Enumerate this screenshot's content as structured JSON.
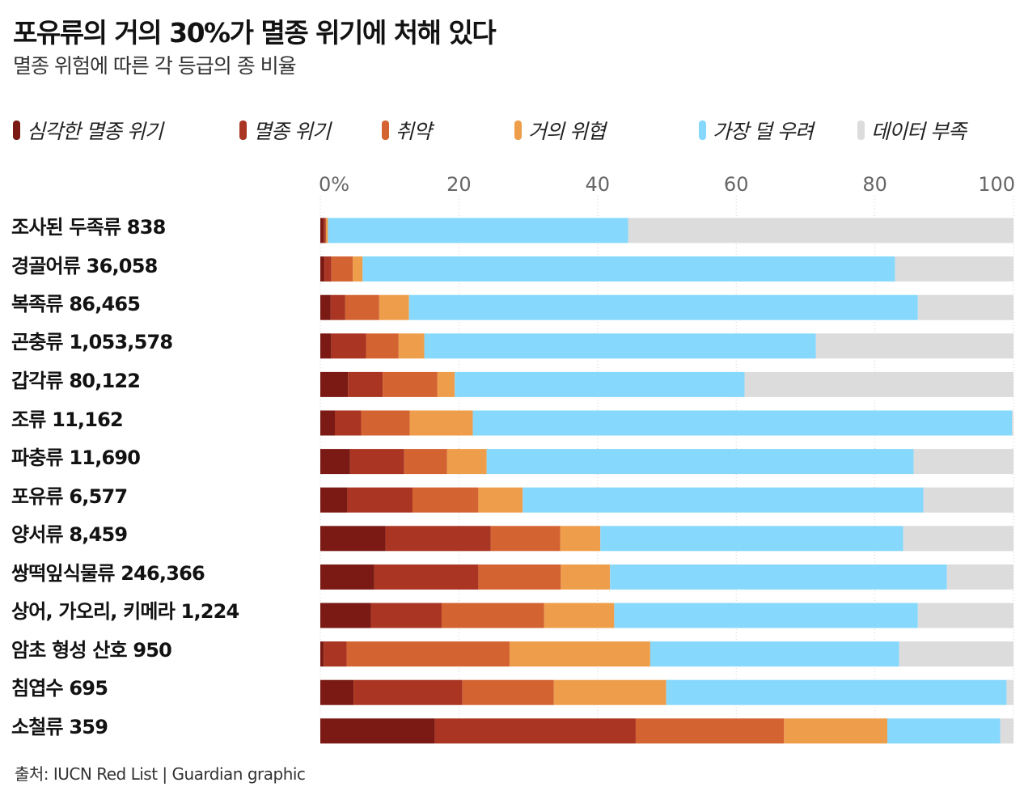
{
  "header": {
    "title": "포유류의 거의 30%가 멸종 위기에 처해 있다",
    "subtitle": "멸종 위험에 따른 각 등급의 종 비율"
  },
  "legend": [
    {
      "label": "심각한 멸종 위기",
      "color": "#7b1a14"
    },
    {
      "label": "멸종 위기",
      "color": "#a93522"
    },
    {
      "label": "취약",
      "color": "#d46332"
    },
    {
      "label": "거의 위협",
      "color": "#ee9e4b"
    },
    {
      "label": "가장 덜 우려",
      "color": "#86d8fd"
    },
    {
      "label": "데이터 부족",
      "color": "#dcdcdc"
    }
  ],
  "chart_data": {
    "type": "bar",
    "orientation": "horizontal",
    "stacked": true,
    "xlim": [
      0,
      100
    ],
    "xticks": [
      "0%",
      "20",
      "40",
      "60",
      "80",
      "100"
    ],
    "xtick_values": [
      0,
      20,
      40,
      60,
      80,
      100
    ],
    "categories": [
      "조사된 두족류 838",
      "경골어류 36,058",
      "복족류 86,465",
      "곤충류 1,053,578",
      "갑각류 80,122",
      "조류 11,162",
      "파충류 11,690",
      "포유류 6,577",
      "양서류 8,459",
      "쌍떡잎식물류 246,366",
      "상어, 가오리, 키메라 1,224",
      "암초 형성 산호 950",
      "침엽수 695",
      "소철류 359"
    ],
    "series": [
      {
        "name": "심각한 멸종 위기",
        "color": "#7b1a14",
        "values": [
          0.5,
          0.6,
          1.5,
          1.6,
          4.0,
          2.1,
          4.3,
          3.9,
          9.4,
          7.8,
          7.3,
          0.5,
          4.8,
          16.5
        ]
      },
      {
        "name": "멸종 위기",
        "color": "#a93522",
        "values": [
          0.3,
          1.0,
          2.1,
          5.0,
          5.0,
          3.8,
          7.8,
          9.4,
          15.2,
          15.0,
          10.2,
          3.3,
          15.7,
          29.0
        ]
      },
      {
        "name": "취약",
        "color": "#d46332",
        "values": [
          0.0,
          3.1,
          4.9,
          4.7,
          7.9,
          7.0,
          6.2,
          9.5,
          10.0,
          11.9,
          14.8,
          23.5,
          13.2,
          21.4
        ]
      },
      {
        "name": "거의 위협",
        "color": "#ee9e4b",
        "values": [
          0.3,
          1.4,
          4.3,
          3.7,
          2.5,
          9.1,
          5.7,
          6.4,
          5.8,
          7.1,
          10.1,
          20.3,
          16.2,
          14.9
        ]
      },
      {
        "name": "가장 덜 우려",
        "color": "#86d8fd",
        "values": [
          43.3,
          76.8,
          73.4,
          56.5,
          41.8,
          77.8,
          61.6,
          57.8,
          43.7,
          48.6,
          43.8,
          35.9,
          49.1,
          16.3
        ]
      },
      {
        "name": "데이터 부족",
        "color": "#dcdcdc",
        "values": [
          55.6,
          17.1,
          13.8,
          28.5,
          38.8,
          0.2,
          14.4,
          13.0,
          15.9,
          9.6,
          13.8,
          16.5,
          1.0,
          1.9
        ]
      }
    ]
  },
  "source": "출처:  IUCN Red List | Guardian graphic"
}
